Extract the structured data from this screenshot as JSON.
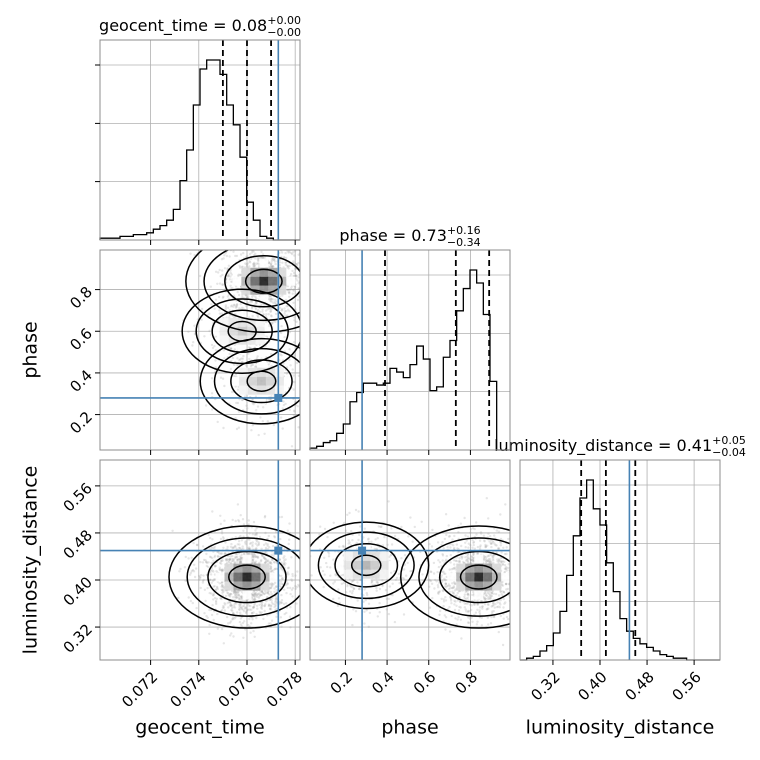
{
  "chart_data": {
    "type": "corner",
    "parameters": [
      {
        "name": "geocent_time",
        "xlabel": "geocent_time",
        "title_prefix": "geocent_time = 0.08",
        "title_plus": "+0.00",
        "title_minus": "−0.00",
        "range": [
          0.0699,
          0.0782
        ],
        "ticks": [
          0.072,
          0.074,
          0.076,
          0.078
        ],
        "tick_labels": [
          "0.072",
          "0.074",
          "0.076",
          "0.078"
        ],
        "truth": 0.0773,
        "quantiles": [
          0.075,
          0.076,
          0.077
        ],
        "hist_edges_start": 0.0699,
        "hist_bin_width": 0.0002767,
        "hist_counts": [
          1,
          1,
          1,
          2,
          2,
          3,
          3,
          4,
          6,
          8,
          11,
          17,
          33,
          50,
          75,
          95,
          100,
          100,
          92,
          75,
          64,
          46,
          21,
          11,
          2,
          1,
          0,
          0,
          0,
          0
        ]
      },
      {
        "name": "phase",
        "xlabel": "phase",
        "ylabel": "phase",
        "title_prefix": "phase = 0.73",
        "title_plus": "+0.16",
        "title_minus": "−0.34",
        "range": [
          0.03,
          0.99
        ],
        "ticks": [
          0.2,
          0.4,
          0.6,
          0.8
        ],
        "tick_labels": [
          "0.2",
          "0.4",
          "0.6",
          "0.8"
        ],
        "truth": 0.28,
        "quantiles": [
          0.39,
          0.73,
          0.89
        ],
        "hist_edges_start": 0.03,
        "hist_bin_width": 0.032,
        "hist_counts": [
          1,
          2,
          4,
          5,
          9,
          14,
          26,
          31,
          36,
          36,
          35,
          36,
          44,
          42,
          39,
          46,
          56,
          49,
          32,
          34,
          50,
          59,
          75,
          87,
          97,
          90,
          73,
          37,
          0,
          0
        ]
      },
      {
        "name": "luminosity_distance",
        "xlabel": "luminosity_distance",
        "ylabel": "luminosity_distance",
        "title_prefix": "luminosity_distance = 0.41",
        "title_plus": "+0.05",
        "title_minus": "−0.04",
        "range": [
          0.264,
          0.604
        ],
        "ticks": [
          0.32,
          0.4,
          0.48,
          0.56
        ],
        "tick_labels": [
          "0.32",
          "0.40",
          "0.48",
          "0.56"
        ],
        "truth": 0.45,
        "quantiles": [
          0.368,
          0.41,
          0.46
        ],
        "hist_edges_start": 0.264,
        "hist_bin_width": 0.01133,
        "hist_counts": [
          0,
          1,
          2,
          5,
          8,
          15,
          27,
          47,
          69,
          90,
          100,
          84,
          75,
          54,
          38,
          23,
          16,
          12,
          9,
          7,
          5,
          3,
          2,
          1,
          1,
          0,
          0,
          0,
          0,
          0
        ]
      }
    ],
    "pairs": [
      {
        "x": "geocent_time",
        "y": "phase",
        "mass_centers": [
          [
            0.0767,
            0.84,
            1.0
          ],
          [
            0.0758,
            0.6,
            0.25
          ],
          [
            0.0766,
            0.36,
            0.3
          ]
        ]
      },
      {
        "x": "geocent_time",
        "y": "luminosity_distance",
        "mass_centers": [
          [
            0.076,
            0.405,
            1.0
          ]
        ]
      },
      {
        "x": "phase",
        "y": "luminosity_distance",
        "mass_centers": [
          [
            0.84,
            0.405,
            1.0
          ],
          [
            0.3,
            0.425,
            0.35
          ]
        ]
      }
    ],
    "grid": true,
    "colors": {
      "truth": "#4682b4",
      "hist": "#000000",
      "contour": "#000000",
      "grid": "#b0b0b0",
      "points": "#9a9a9a"
    }
  }
}
